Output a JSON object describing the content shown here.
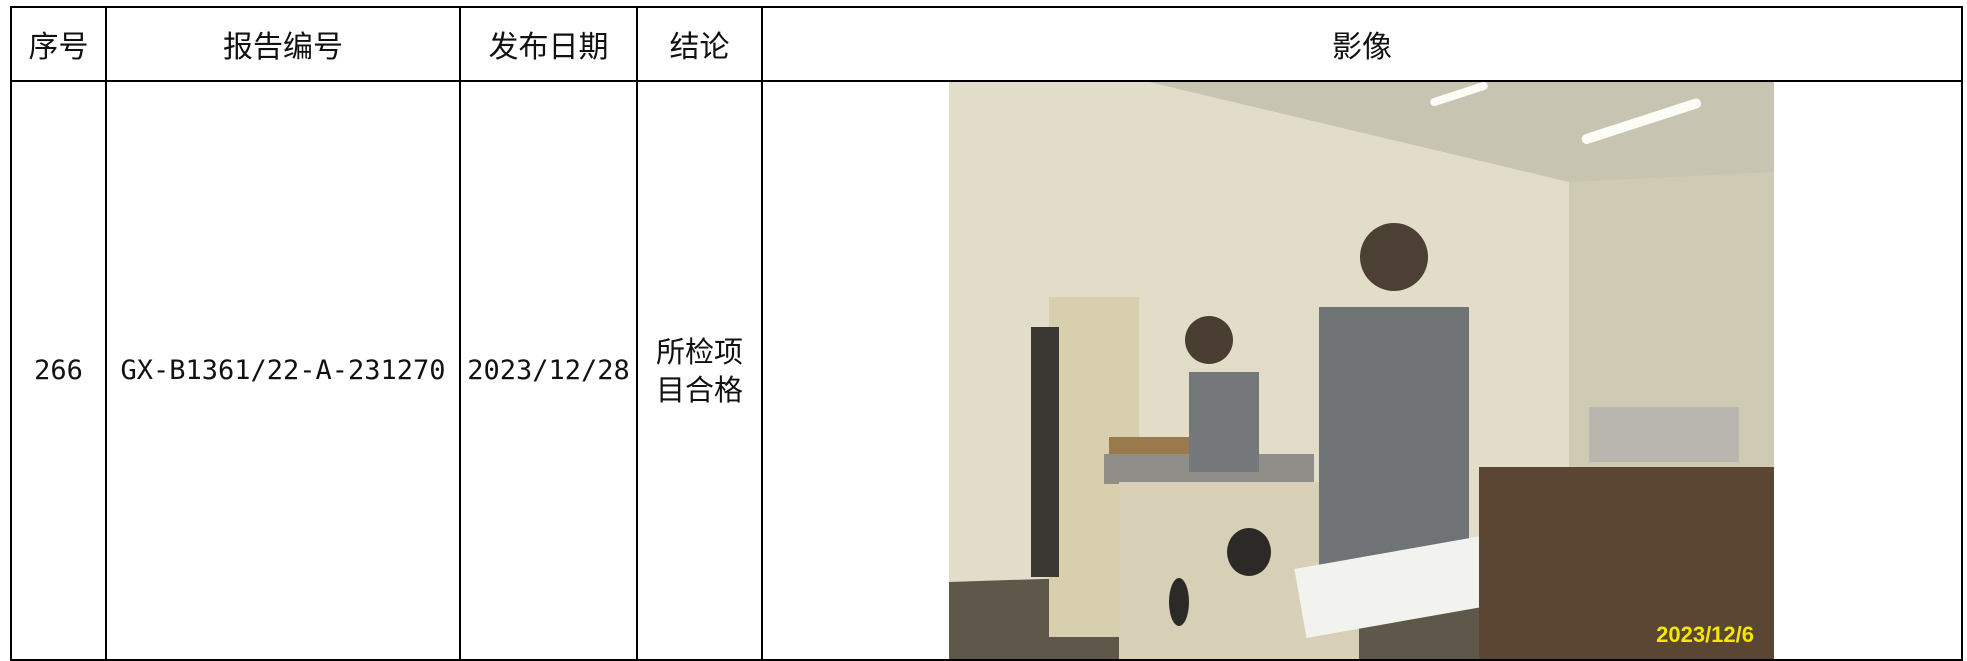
{
  "table": {
    "headers": [
      "序号",
      "报告编号",
      "发布日期",
      "结论",
      "影像"
    ],
    "rows": [
      [
        "266",
        "GX-B1361/22-A-231270",
        "2023/12/28",
        "所检项目合格"
      ]
    ]
  },
  "image": {
    "date_stamp": "2023/12/6"
  }
}
